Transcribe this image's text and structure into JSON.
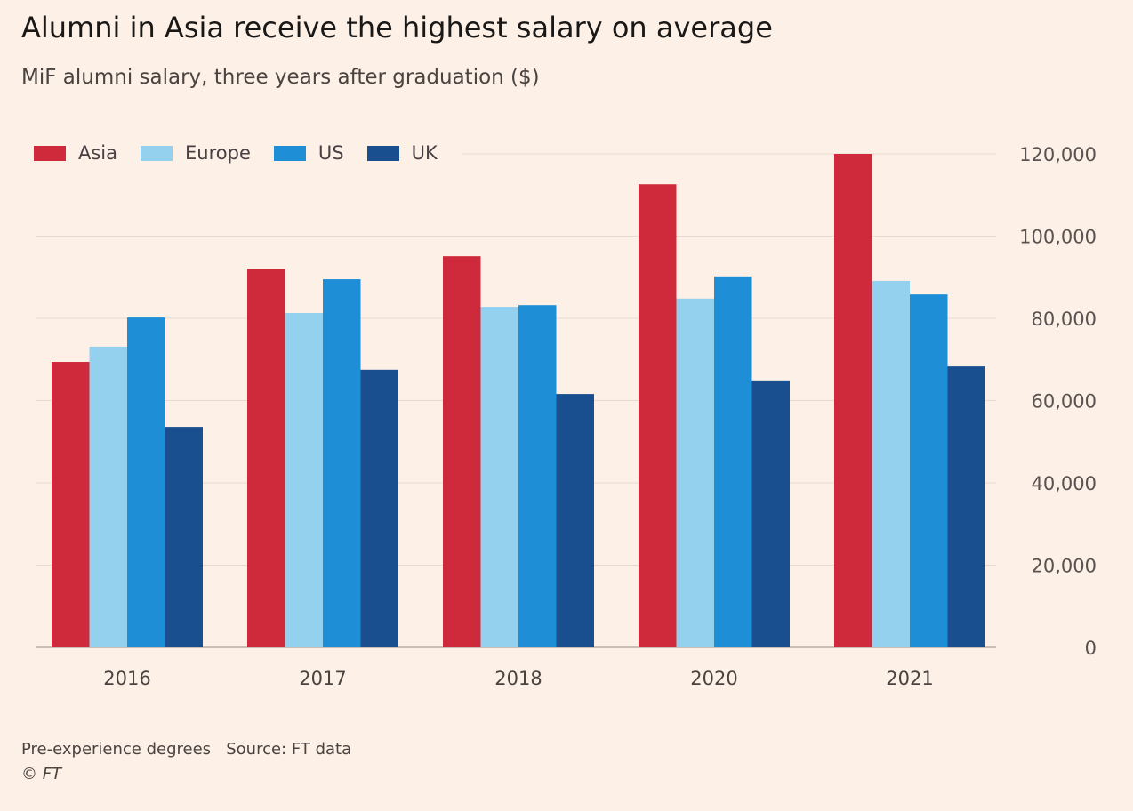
{
  "chart_data": {
    "type": "bar",
    "title": "Alumni in Asia receive the highest salary on average",
    "subtitle": "MiF alumni salary, three years after graduation ($)",
    "categories": [
      "2016",
      "2017",
      "2018",
      "2020",
      "2021"
    ],
    "series": [
      {
        "name": "Asia",
        "color": "#cf2a3b",
        "values": [
          69400,
          92100,
          95100,
          112600,
          120000
        ]
      },
      {
        "name": "Europe",
        "color": "#93d1ee",
        "values": [
          73100,
          81300,
          82800,
          84800,
          89100
        ]
      },
      {
        "name": "US",
        "color": "#1e8ed6",
        "values": [
          80200,
          89500,
          83200,
          90200,
          85800
        ]
      },
      {
        "name": "UK",
        "color": "#1a4f8f",
        "values": [
          53600,
          67500,
          61600,
          64900,
          68300
        ]
      }
    ],
    "ylim": [
      0,
      120000
    ],
    "yticks": [
      "0",
      "20,000",
      "40,000",
      "60,000",
      "80,000",
      "100,000",
      "120,000"
    ],
    "ytick_values": [
      0,
      20000,
      40000,
      60000,
      80000,
      100000,
      120000
    ],
    "y_axis_side": "right",
    "grid": true,
    "legend_position": "top-left",
    "xlabel": "",
    "ylabel": ""
  },
  "footer": {
    "note": "Pre-experience degrees",
    "source": "Source: FT data",
    "copyright": "© FT"
  }
}
